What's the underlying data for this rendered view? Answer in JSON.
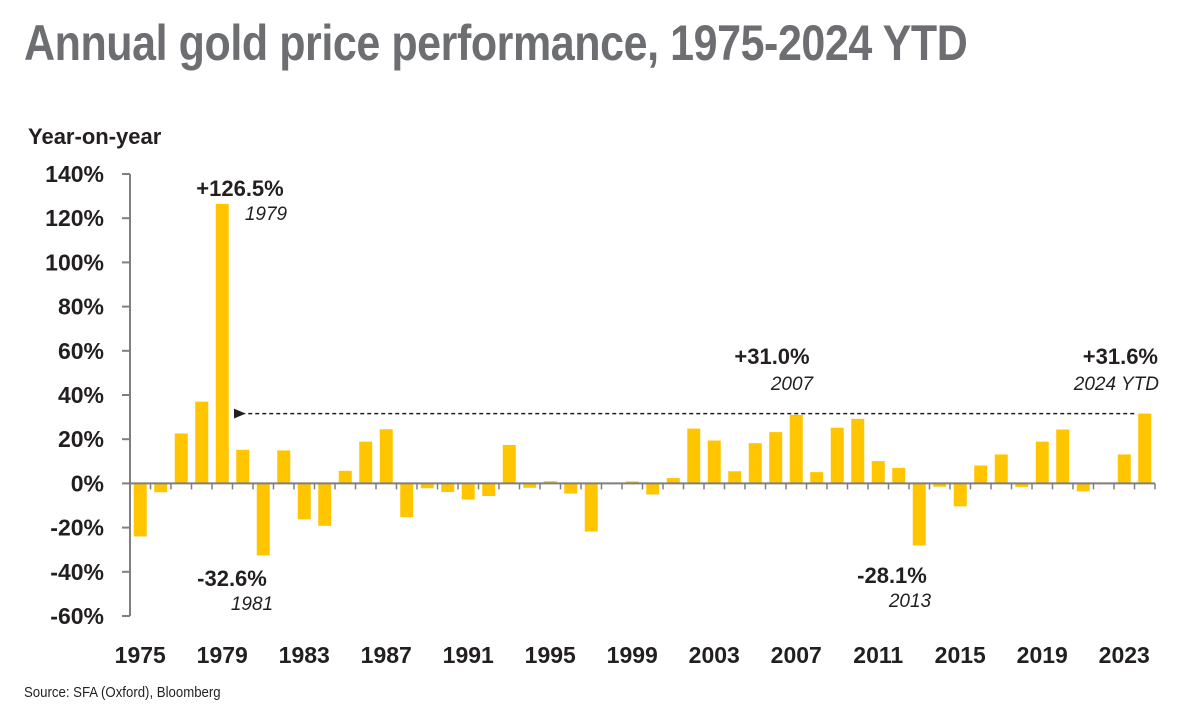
{
  "title": "Annual gold price performance, 1975-2024 YTD",
  "source": "Source: SFA (Oxford), Bloomberg",
  "colors": {
    "bar": "#ffc600",
    "text": "#231f20",
    "title": "#6d6e71",
    "axis": "#7f7f7f"
  },
  "chart_data": {
    "type": "bar",
    "ylabel": "Year-on-year",
    "ylim": [
      -60,
      140
    ],
    "yticks": [
      140,
      120,
      100,
      80,
      60,
      40,
      20,
      0,
      -20,
      -40,
      -60
    ],
    "ytick_labels": [
      "140%",
      "120%",
      "100%",
      "80%",
      "60%",
      "40%",
      "20%",
      "0%",
      "-20%",
      "-40%",
      "-60%"
    ],
    "xtick_labels": [
      "1975",
      "1979",
      "1983",
      "1987",
      "1991",
      "1995",
      "1999",
      "2003",
      "2007",
      "2011",
      "2015",
      "2019",
      "2023"
    ],
    "categories": [
      "1975",
      "1976",
      "1977",
      "1978",
      "1979",
      "1980",
      "1981",
      "1982",
      "1983",
      "1984",
      "1985",
      "1986",
      "1987",
      "1988",
      "1989",
      "1990",
      "1991",
      "1992",
      "1993",
      "1994",
      "1995",
      "1996",
      "1997",
      "1998",
      "1999",
      "2000",
      "2001",
      "2002",
      "2003",
      "2004",
      "2005",
      "2006",
      "2007",
      "2008",
      "2009",
      "2010",
      "2011",
      "2012",
      "2013",
      "2014",
      "2015",
      "2016",
      "2017",
      "2018",
      "2019",
      "2020",
      "2021",
      "2022",
      "2023",
      "2024"
    ],
    "values": [
      -24.0,
      -4.0,
      22.6,
      37.0,
      126.5,
      15.2,
      -32.6,
      14.9,
      -16.3,
      -19.2,
      5.7,
      18.9,
      24.5,
      -15.3,
      -2.2,
      -3.9,
      -7.3,
      -5.7,
      17.4,
      -2.0,
      1.0,
      -4.6,
      -21.8,
      -0.3,
      0.9,
      -5.0,
      2.4,
      24.8,
      19.4,
      5.5,
      18.2,
      23.2,
      31.0,
      5.1,
      25.2,
      29.2,
      10.1,
      7.0,
      -28.1,
      -1.5,
      -10.4,
      8.1,
      13.1,
      -1.6,
      18.9,
      24.4,
      -3.6,
      -0.3,
      13.1,
      31.6
    ],
    "annotations": [
      {
        "value": "+126.5%",
        "year": "1979"
      },
      {
        "value": "-32.6%",
        "year": "1981"
      },
      {
        "value": "+31.0%",
        "year": "2007"
      },
      {
        "value": "-28.1%",
        "year": "2013"
      },
      {
        "value": "+31.6%",
        "year": "2024 YTD"
      }
    ],
    "reference_arrow": {
      "from_category": "2024",
      "to_category": "1979",
      "level": 31.6
    },
    "grid": false,
    "legend": "none"
  }
}
